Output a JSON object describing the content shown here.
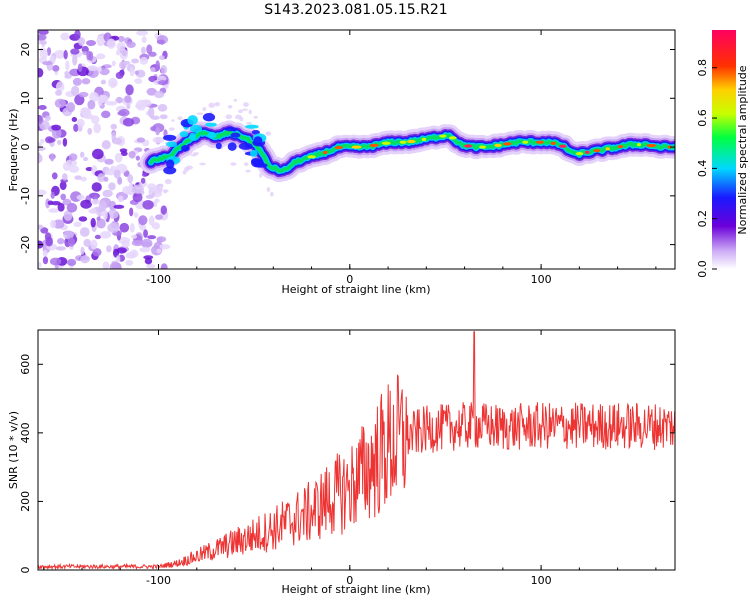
{
  "title": "S143.2023.081.05.15.R21",
  "chart_data": [
    {
      "type": "heatmap",
      "xlabel": "Height of straight line (km)",
      "ylabel": "Frequency (Hz)",
      "xlim": [
        -163,
        170
      ],
      "ylim": [
        -25,
        24
      ],
      "x_ticks": [
        -100,
        0,
        100
      ],
      "y_ticks": [
        -20,
        -10,
        0,
        10,
        20
      ],
      "colorbar": {
        "label": "Normalized spectral amplitude",
        "range": [
          0,
          0.95
        ],
        "ticks": [
          0.0,
          0.2,
          0.4,
          0.6,
          0.8
        ]
      },
      "noise_region_x": [
        -163,
        -100
      ],
      "ridge": {
        "x": [
          -105,
          -95,
          -85,
          -78,
          -70,
          -63,
          -55,
          -48,
          -42,
          -35,
          -28,
          -20,
          -12,
          -5,
          0,
          8,
          15,
          22,
          30,
          38,
          45,
          52,
          58,
          65,
          72,
          80,
          88,
          95,
          103,
          110,
          118,
          125,
          133,
          140,
          148,
          155,
          162,
          170
        ],
        "y": [
          -3,
          -2,
          1,
          3,
          2,
          3,
          2,
          0,
          -4,
          -5,
          -3,
          -2,
          -1,
          0,
          0,
          0,
          0.5,
          1,
          1,
          1.5,
          2,
          2.5,
          0.5,
          0,
          0,
          0.5,
          1,
          1,
          1,
          0.5,
          -1.5,
          -1,
          -0.5,
          0,
          0.5,
          0.5,
          0,
          0
        ]
      }
    },
    {
      "type": "line",
      "xlabel": "Height of straight line (km)",
      "ylabel": "SNR (10 * v/v)",
      "xlim": [
        -163,
        170
      ],
      "ylim": [
        0,
        700
      ],
      "x_ticks": [
        -100,
        0,
        100
      ],
      "y_ticks": [
        0,
        200,
        400,
        600
      ],
      "color": "#ee3333",
      "trend": {
        "x": [
          -163,
          -100,
          -90,
          -80,
          -70,
          -60,
          -50,
          -40,
          -30,
          -20,
          -10,
          0,
          10,
          20,
          30,
          40,
          50,
          60,
          70,
          80,
          100,
          120,
          140,
          170
        ],
        "y": [
          10,
          10,
          20,
          40,
          60,
          80,
          100,
          120,
          145,
          170,
          210,
          240,
          300,
          360,
          390,
          410,
          415,
          420,
          420,
          415,
          420,
          420,
          420,
          420
        ]
      },
      "spike": {
        "x": 65,
        "y": 695
      }
    }
  ]
}
